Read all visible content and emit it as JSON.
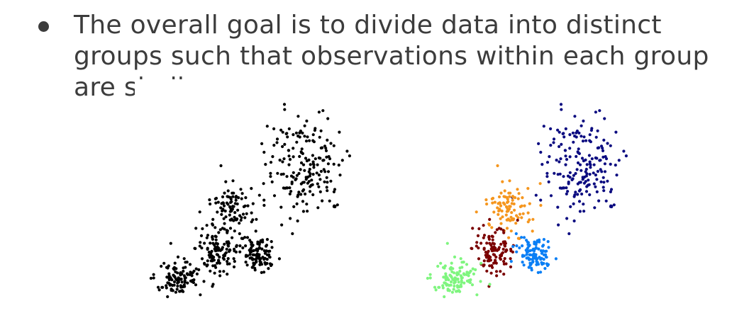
{
  "slide": {
    "bullet_text": "The overall goal is to divide data into distinct groups such that observations within each group are similar"
  },
  "plots": {
    "left": {
      "style": "unclustered",
      "point_color": "#000000"
    },
    "right": {
      "style": "clustered"
    }
  },
  "clusters": [
    {
      "name": "dark-blue",
      "color": "#0b0b80",
      "n": 190
    },
    {
      "name": "orange",
      "color": "#f5961e",
      "n": 95
    },
    {
      "name": "dark-red",
      "color": "#7a0000",
      "n": 110
    },
    {
      "name": "light-blue",
      "color": "#0a7ff5",
      "n": 110
    },
    {
      "name": "light-green",
      "color": "#7ff57f",
      "n": 110
    }
  ]
}
